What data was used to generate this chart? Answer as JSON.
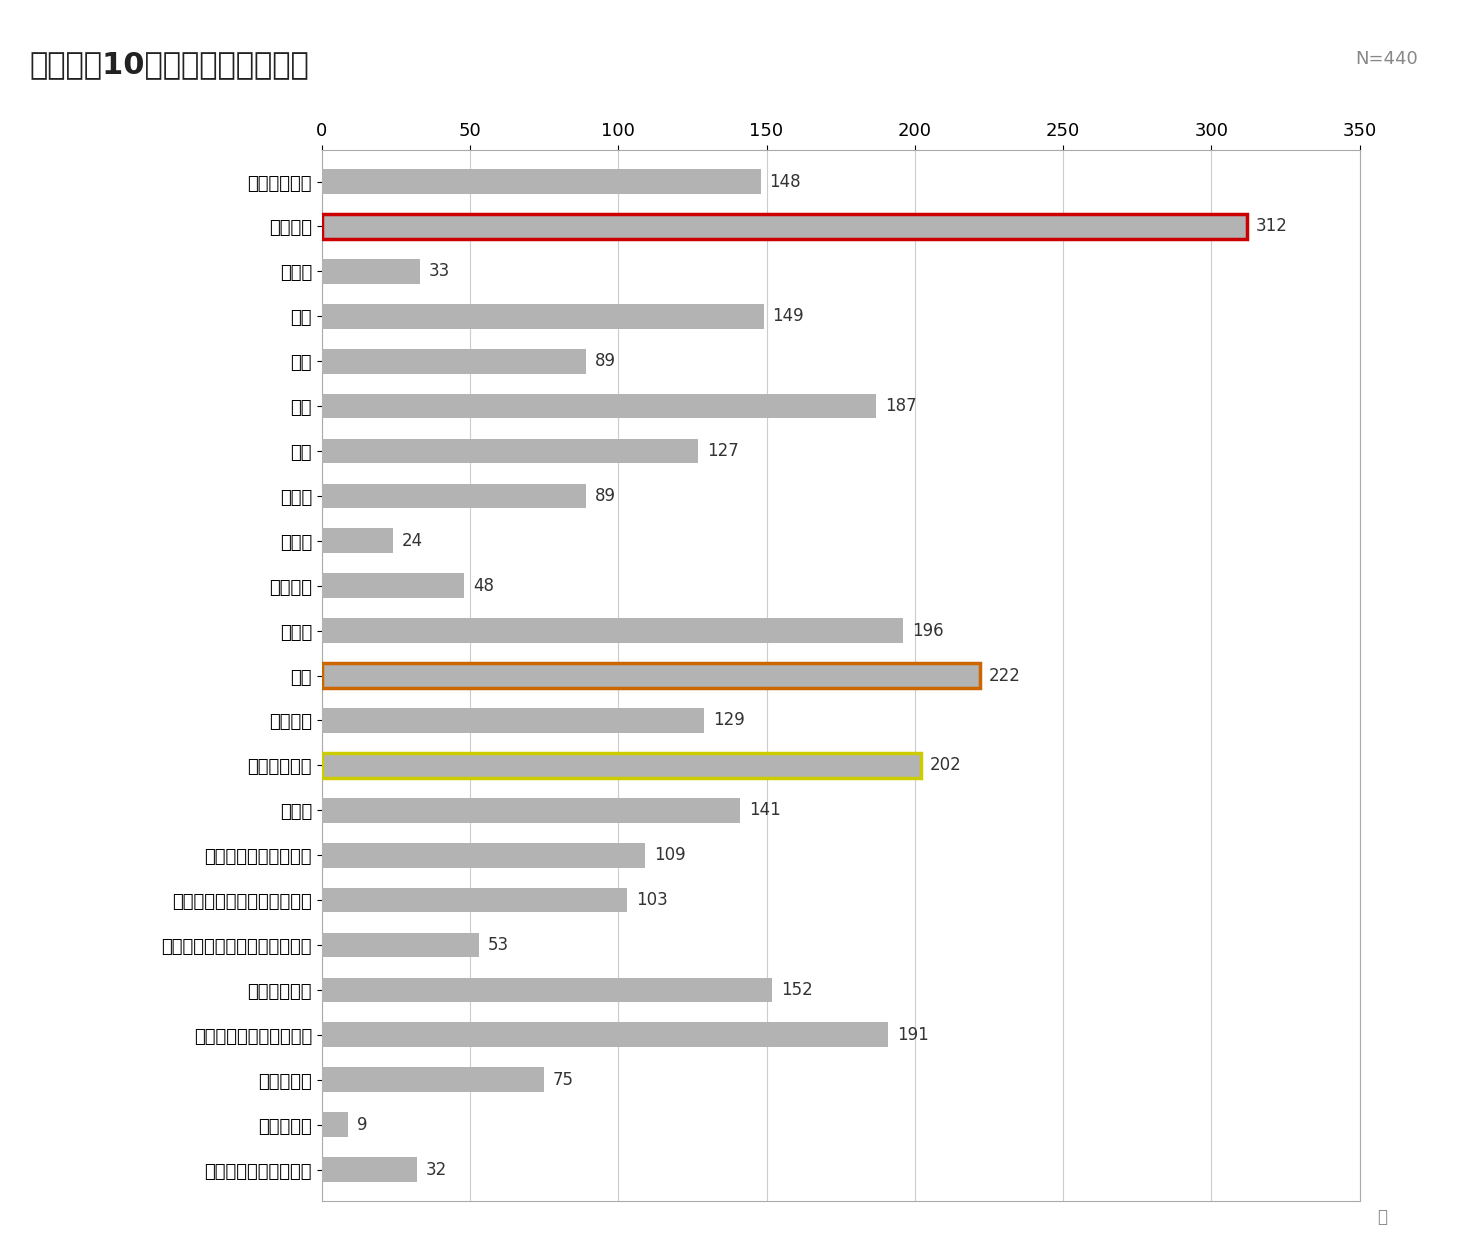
{
  "title": "図表３．10歳代の月経随伴症状",
  "n_label": "N=440",
  "unit_label": "人",
  "categories": [
    "下腹部膨満感",
    "下腹部痛",
    "内臓痛",
    "下痢",
    "便秘",
    "腰痛",
    "頭痛",
    "乳房通",
    "関節痛",
    "手足浮腫",
    "倦怠感",
    "眠気",
    "食欲亢進",
    "イライラする",
    "抑うつ",
    "悲しくて涙もろくなる",
    "不安や緊張など感情が高ぶる",
    "趣味など何事にも興味が薄れる",
    "集中力の低下",
    "疲れやすく気力が出ない",
    "自己喪失感",
    "症状その他",
    "当てはまるものがない"
  ],
  "values": [
    148,
    312,
    33,
    149,
    89,
    187,
    127,
    89,
    24,
    48,
    196,
    222,
    129,
    202,
    141,
    109,
    103,
    53,
    152,
    191,
    75,
    9,
    32
  ],
  "bar_color": "#b3b3b3",
  "highlighted_bars": {
    "下腹部痛": {
      "edgecolor": "#cc0000",
      "linewidth": 2.5
    },
    "眠気": {
      "edgecolor": "#cc6600",
      "linewidth": 2.5
    },
    "イライラする": {
      "edgecolor": "#cccc00",
      "linewidth": 2.5
    }
  },
  "xlim": [
    0,
    350
  ],
  "xticks": [
    0,
    50,
    100,
    150,
    200,
    250,
    300,
    350
  ],
  "background_color": "#ffffff",
  "plot_bg_color": "#ffffff",
  "title_fontsize": 22,
  "axis_fontsize": 13,
  "tick_fontsize": 13,
  "value_fontsize": 12,
  "grid_color": "#cccccc",
  "border_color": "#aaaaaa"
}
